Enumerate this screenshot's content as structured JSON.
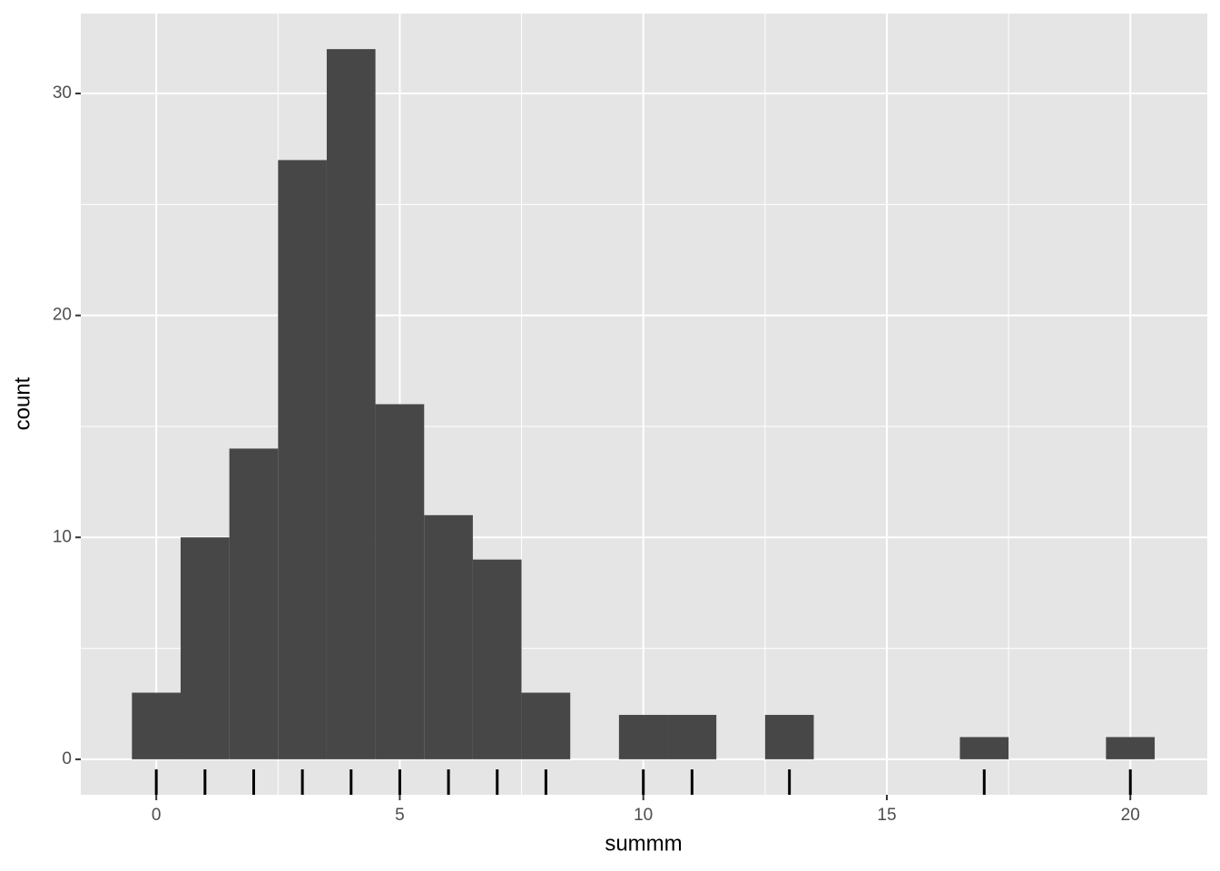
{
  "chart_data": {
    "type": "histogram",
    "x_label": "summm",
    "y_label": "count",
    "bins": [
      -0.5,
      0.5,
      1.5,
      2.5,
      3.5,
      4.5,
      5.5,
      6.5,
      7.5,
      8.5,
      9.5,
      10.5,
      11.5,
      12.5,
      13.5,
      14.5,
      15.5,
      16.5,
      17.5,
      18.5,
      19.5,
      20.5
    ],
    "values": [
      3,
      10,
      14,
      27,
      32,
      16,
      11,
      9,
      3,
      0,
      2,
      2,
      0,
      2,
      0,
      0,
      0,
      1,
      0,
      0,
      1
    ],
    "rug": [
      0,
      1,
      2,
      3,
      4,
      5,
      6,
      7,
      8,
      10,
      11,
      13,
      17,
      20
    ],
    "color": "#474747",
    "rug_color": "#000000",
    "xlim": [
      -1.55,
      21.58
    ],
    "ylim": [
      -1.6,
      33.6
    ],
    "xticks": [
      0,
      5,
      10,
      15,
      20
    ],
    "yticks": [
      0,
      10,
      20,
      30
    ],
    "grid": true
  }
}
